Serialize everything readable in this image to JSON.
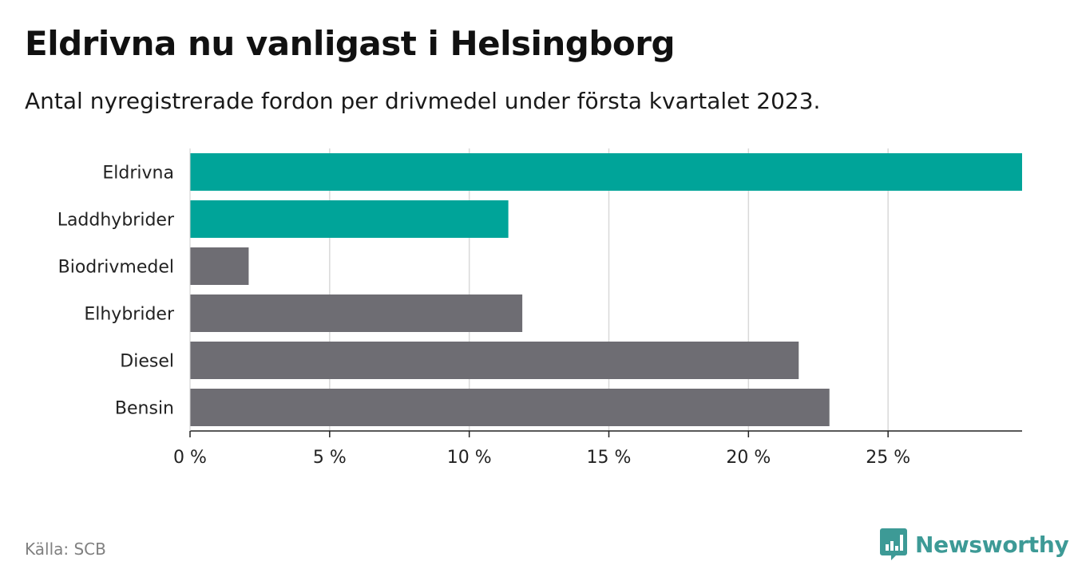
{
  "header": {
    "title": "Eldrivna nu vanligast i Helsingborg",
    "subtitle": "Antal nyregistrerade fordon per drivmedel under första kvartalet 2023."
  },
  "footer": {
    "source": "Källa: SCB",
    "brand": "Newsworthy"
  },
  "colors": {
    "highlight": "#00a499",
    "default": "#6e6d73",
    "grid": "#d9d9d9",
    "brand": "#3d9a96"
  },
  "chart_data": {
    "type": "bar",
    "orientation": "horizontal",
    "categories": [
      "Eldrivna",
      "Laddhybrider",
      "Biodrivmedel",
      "Elhybrider",
      "Diesel",
      "Bensin"
    ],
    "values": [
      29.8,
      11.4,
      2.1,
      11.9,
      21.8,
      22.9
    ],
    "highlight": [
      true,
      true,
      false,
      false,
      false,
      false
    ],
    "xlim": [
      0,
      29.8
    ],
    "xticks": [
      0,
      5,
      10,
      15,
      20,
      25
    ],
    "xtick_labels": [
      "0 %",
      "5 %",
      "10 %",
      "15 %",
      "20 %",
      "25 %"
    ],
    "grid": true,
    "unit": "%"
  }
}
